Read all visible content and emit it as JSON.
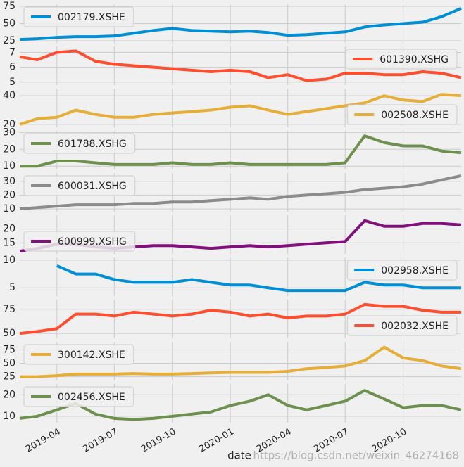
{
  "chart_data": [
    {
      "type": "line",
      "x": [
        "2019-02",
        "2019-03",
        "2019-04",
        "2019-05",
        "2019-06",
        "2019-07",
        "2019-08",
        "2019-09",
        "2019-10",
        "2019-11",
        "2019-12",
        "2020-01",
        "2020-02",
        "2020-03",
        "2020-04",
        "2020-05",
        "2020-06",
        "2020-07",
        "2020-08",
        "2020-09",
        "2020-10",
        "2020-11",
        "2020-12",
        "2021-01"
      ],
      "xlim": [
        "2019-02",
        "2021-01"
      ],
      "xticks": [
        "2019-04",
        "2019-07",
        "2019-10",
        "2020-01",
        "2020-04",
        "2020-07",
        "2020-10"
      ],
      "series": [
        {
          "name": "002179.XSHE",
          "color": "#008fd5",
          "values": [
            27,
            28,
            30,
            31,
            31,
            32,
            36,
            40,
            43,
            40,
            39,
            38,
            39,
            37,
            33,
            34,
            36,
            38,
            45,
            48,
            50,
            52,
            60,
            72
          ]
        }
      ],
      "ylim": [
        22,
        78
      ],
      "yticks": [
        25,
        50,
        75
      ],
      "grid": true,
      "legend": "upper left"
    },
    {
      "type": "line",
      "x": [
        "2019-02",
        "2019-03",
        "2019-04",
        "2019-05",
        "2019-06",
        "2019-07",
        "2019-08",
        "2019-09",
        "2019-10",
        "2019-11",
        "2019-12",
        "2020-01",
        "2020-02",
        "2020-03",
        "2020-04",
        "2020-05",
        "2020-06",
        "2020-07",
        "2020-08",
        "2020-09",
        "2020-10",
        "2020-11",
        "2020-12",
        "2021-01"
      ],
      "xlim": [
        "2019-02",
        "2021-01"
      ],
      "xticks": [
        "2019-04",
        "2019-07",
        "2019-10",
        "2020-01",
        "2020-04",
        "2020-07",
        "2020-10"
      ],
      "series": [
        {
          "name": "601390.XSHG",
          "color": "#fc4f30",
          "values": [
            6.7,
            6.5,
            7.0,
            7.1,
            6.4,
            6.2,
            6.1,
            6.0,
            5.9,
            5.8,
            5.7,
            5.8,
            5.7,
            5.3,
            5.5,
            5.1,
            5.2,
            5.6,
            5.6,
            5.5,
            5.5,
            5.7,
            5.6,
            5.3
          ]
        }
      ],
      "ylim": [
        4.8,
        7.4
      ],
      "yticks": [
        5,
        6,
        7
      ],
      "grid": true,
      "legend": "upper right"
    },
    {
      "type": "line",
      "x": [
        "2019-02",
        "2019-03",
        "2019-04",
        "2019-05",
        "2019-06",
        "2019-07",
        "2019-08",
        "2019-09",
        "2019-10",
        "2019-11",
        "2019-12",
        "2020-01",
        "2020-02",
        "2020-03",
        "2020-04",
        "2020-05",
        "2020-06",
        "2020-07",
        "2020-08",
        "2020-09",
        "2020-10",
        "2020-11",
        "2020-12",
        "2021-01"
      ],
      "xlim": [
        "2019-02",
        "2021-01"
      ],
      "xticks": [
        "2019-04",
        "2019-07",
        "2019-10",
        "2020-01",
        "2020-04",
        "2020-07",
        "2020-10"
      ],
      "series": [
        {
          "name": "002508.XSHE",
          "color": "#e5ae38",
          "values": [
            20,
            24,
            25,
            30,
            27,
            25,
            25,
            27,
            28,
            29,
            30,
            32,
            33,
            30,
            27,
            29,
            31,
            33,
            35,
            40,
            37,
            36,
            41,
            40
          ]
        }
      ],
      "ylim": [
        18,
        45
      ],
      "yticks": [
        20,
        40
      ],
      "grid": true,
      "legend": "lower right"
    },
    {
      "type": "line",
      "x": [
        "2019-02",
        "2019-03",
        "2019-04",
        "2019-05",
        "2019-06",
        "2019-07",
        "2019-08",
        "2019-09",
        "2019-10",
        "2019-11",
        "2019-12",
        "2020-01",
        "2020-02",
        "2020-03",
        "2020-04",
        "2020-05",
        "2020-06",
        "2020-07",
        "2020-08",
        "2020-09",
        "2020-10",
        "2020-11",
        "2020-12",
        "2021-01"
      ],
      "xlim": [
        "2019-02",
        "2021-01"
      ],
      "xticks": [
        "2019-04",
        "2019-07",
        "2019-10",
        "2020-01",
        "2020-04",
        "2020-07",
        "2020-10"
      ],
      "series": [
        {
          "name": "601788.XSHG",
          "color": "#6d904f",
          "values": [
            10,
            10,
            13,
            13,
            12,
            11,
            11,
            11,
            12,
            11,
            11,
            12,
            11,
            11,
            11,
            11,
            11,
            12,
            28,
            24,
            22,
            22,
            19,
            18
          ]
        }
      ],
      "ylim": [
        8,
        31
      ],
      "yticks": [
        10,
        20,
        30
      ],
      "grid": true,
      "legend": "upper left"
    },
    {
      "type": "line",
      "x": [
        "2019-02",
        "2019-03",
        "2019-04",
        "2019-05",
        "2019-06",
        "2019-07",
        "2019-08",
        "2019-09",
        "2019-10",
        "2019-11",
        "2019-12",
        "2020-01",
        "2020-02",
        "2020-03",
        "2020-04",
        "2020-05",
        "2020-06",
        "2020-07",
        "2020-08",
        "2020-09",
        "2020-10",
        "2020-11",
        "2020-12",
        "2021-01"
      ],
      "xlim": [
        "2019-02",
        "2021-01"
      ],
      "xticks": [
        "2019-04",
        "2019-07",
        "2019-10",
        "2020-01",
        "2020-04",
        "2020-07",
        "2020-10"
      ],
      "series": [
        {
          "name": "600031.XSHG",
          "color": "#8b8b8b",
          "values": [
            10,
            11,
            12,
            13,
            13,
            13,
            14,
            14,
            15,
            15,
            16,
            17,
            18,
            17,
            19,
            20,
            21,
            22,
            24,
            25,
            26,
            28,
            31,
            34
          ]
        }
      ],
      "ylim": [
        8,
        36
      ],
      "yticks": [
        10,
        20,
        30
      ],
      "grid": true,
      "legend": "upper left"
    },
    {
      "type": "line",
      "x": [
        "2019-02",
        "2019-03",
        "2019-04",
        "2019-05",
        "2019-06",
        "2019-07",
        "2019-08",
        "2019-09",
        "2019-10",
        "2019-11",
        "2019-12",
        "2020-01",
        "2020-02",
        "2020-03",
        "2020-04",
        "2020-05",
        "2020-06",
        "2020-07",
        "2020-08",
        "2020-09",
        "2020-10",
        "2020-11",
        "2020-12",
        "2021-01"
      ],
      "xlim": [
        "2019-02",
        "2021-01"
      ],
      "xticks": [
        "2019-04",
        "2019-07",
        "2019-10",
        "2020-01",
        "2020-04",
        "2020-07",
        "2020-10"
      ],
      "series": [
        {
          "name": "600999.XSHG",
          "color": "#810f7c",
          "values": [
            12,
            13,
            14.5,
            14.5,
            13.5,
            13,
            13.5,
            14,
            14,
            13.5,
            13,
            13.5,
            14,
            13.5,
            14,
            14.5,
            15,
            15.5,
            23,
            21,
            21,
            22,
            22,
            21.5
          ]
        }
      ],
      "ylim": [
        11,
        25
      ],
      "yticks": [
        15,
        20
      ],
      "grid": true,
      "legend": "lower left"
    },
    {
      "type": "line",
      "x": [
        "2019-02",
        "2019-03",
        "2019-04",
        "2019-05",
        "2019-06",
        "2019-07",
        "2019-08",
        "2019-09",
        "2019-10",
        "2019-11",
        "2019-12",
        "2020-01",
        "2020-02",
        "2020-03",
        "2020-04",
        "2020-05",
        "2020-06",
        "2020-07",
        "2020-08",
        "2020-09",
        "2020-10",
        "2020-11",
        "2020-12",
        "2021-01"
      ],
      "xlim": [
        "2019-02",
        "2021-01"
      ],
      "xticks": [
        "2019-04",
        "2019-07",
        "2019-10",
        "2020-01",
        "2020-04",
        "2020-07",
        "2020-10"
      ],
      "series": [
        {
          "name": "002958.XSHE",
          "color": "#008fd5",
          "values": [
            null,
            null,
            9,
            7.5,
            7.5,
            6.5,
            6,
            6,
            6,
            6.5,
            6,
            5.5,
            5.5,
            5,
            4.5,
            4.5,
            4.5,
            4.5,
            6,
            5.5,
            5.5,
            5,
            5,
            5
          ]
        }
      ],
      "ylim": [
        3.5,
        10.5
      ],
      "yticks": [
        5,
        10
      ],
      "grid": true,
      "legend": "upper right"
    },
    {
      "type": "line",
      "x": [
        "2019-02",
        "2019-03",
        "2019-04",
        "2019-05",
        "2019-06",
        "2019-07",
        "2019-08",
        "2019-09",
        "2019-10",
        "2019-11",
        "2019-12",
        "2020-01",
        "2020-02",
        "2020-03",
        "2020-04",
        "2020-05",
        "2020-06",
        "2020-07",
        "2020-08",
        "2020-09",
        "2020-10",
        "2020-11",
        "2020-12",
        "2021-01"
      ],
      "xlim": [
        "2019-02",
        "2021-01"
      ],
      "xticks": [
        "2019-04",
        "2019-07",
        "2019-10",
        "2020-01",
        "2020-04",
        "2020-07",
        "2020-10"
      ],
      "series": [
        {
          "name": "002032.XSHE",
          "color": "#fc4f30",
          "values": [
            50,
            52,
            55,
            70,
            70,
            68,
            72,
            70,
            68,
            70,
            74,
            72,
            68,
            70,
            66,
            68,
            68,
            70,
            80,
            78,
            78,
            74,
            72,
            72
          ]
        }
      ],
      "ylim": [
        45,
        85
      ],
      "yticks": [
        50,
        75
      ],
      "grid": true,
      "legend": "lower right"
    },
    {
      "type": "line",
      "x": [
        "2019-02",
        "2019-03",
        "2019-04",
        "2019-05",
        "2019-06",
        "2019-07",
        "2019-08",
        "2019-09",
        "2019-10",
        "2019-11",
        "2019-12",
        "2020-01",
        "2020-02",
        "2020-03",
        "2020-04",
        "2020-05",
        "2020-06",
        "2020-07",
        "2020-08",
        "2020-09",
        "2020-10",
        "2020-11",
        "2020-12",
        "2021-01"
      ],
      "xlim": [
        "2019-02",
        "2021-01"
      ],
      "xticks": [
        "2019-04",
        "2019-07",
        "2019-10",
        "2020-01",
        "2020-04",
        "2020-07",
        "2020-10"
      ],
      "series": [
        {
          "name": "300142.XSHE",
          "color": "#e5ae38",
          "values": [
            25,
            25,
            27,
            30,
            30,
            30,
            31,
            30,
            30,
            31,
            32,
            33,
            33,
            33,
            35,
            40,
            42,
            45,
            55,
            80,
            60,
            55,
            45,
            40
          ]
        }
      ],
      "ylim": [
        18,
        90
      ],
      "yticks": [
        25,
        50,
        75
      ],
      "grid": true,
      "legend": "upper left"
    },
    {
      "type": "line",
      "x": [
        "2019-02",
        "2019-03",
        "2019-04",
        "2019-05",
        "2019-06",
        "2019-07",
        "2019-08",
        "2019-09",
        "2019-10",
        "2019-11",
        "2019-12",
        "2020-01",
        "2020-02",
        "2020-03",
        "2020-04",
        "2020-05",
        "2020-06",
        "2020-07",
        "2020-08",
        "2020-09",
        "2020-10",
        "2020-11",
        "2020-12",
        "2021-01"
      ],
      "xlim": [
        "2019-02",
        "2021-01"
      ],
      "xticks": [
        "2019-04",
        "2019-07",
        "2019-10",
        "2020-01",
        "2020-04",
        "2020-07",
        "2020-10"
      ],
      "series": [
        {
          "name": "002456.XSHE",
          "color": "#6d904f",
          "values": [
            9,
            10,
            13,
            16,
            11,
            9,
            8.5,
            9,
            10,
            11,
            12,
            15,
            17,
            20,
            15,
            13,
            15,
            17,
            22,
            18,
            14,
            15,
            15,
            13
          ]
        }
      ],
      "ylim": [
        7,
        25
      ],
      "yticks": [
        10,
        20
      ],
      "grid": true,
      "legend": "upper left",
      "xlabel": "date",
      "show_xtick_labels": true
    }
  ],
  "watermark": "https://blog.csdn.net/weixin_46274168"
}
